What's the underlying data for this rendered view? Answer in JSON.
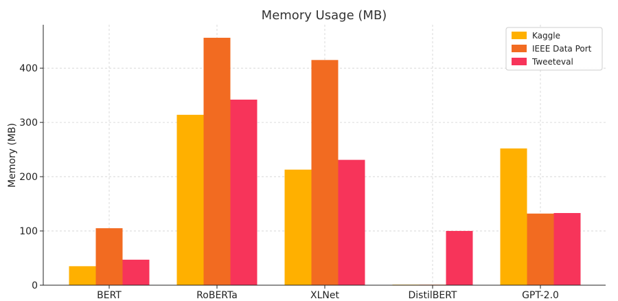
{
  "chart_data": {
    "type": "bar",
    "title": "Memory Usage (MB)",
    "xlabel": "",
    "ylabel": "Memory (MB)",
    "categories": [
      "BERT",
      "RoBERTa",
      "XLNet",
      "DistilBERT",
      "GPT-2.0"
    ],
    "series": [
      {
        "name": "Kaggle",
        "color": "#ffb000",
        "values": [
          35,
          314,
          213,
          1,
          252
        ]
      },
      {
        "name": "IEEE Data Port",
        "color": "#f26b21",
        "values": [
          105,
          456,
          415,
          1,
          132
        ]
      },
      {
        "name": "Tweeteval",
        "color": "#f7345a",
        "values": [
          47,
          342,
          231,
          100,
          133
        ]
      }
    ],
    "yticks": [
      0,
      100,
      200,
      300,
      400
    ],
    "ylim": [
      0,
      480
    ],
    "grid": true,
    "legend_position": "top-right"
  }
}
